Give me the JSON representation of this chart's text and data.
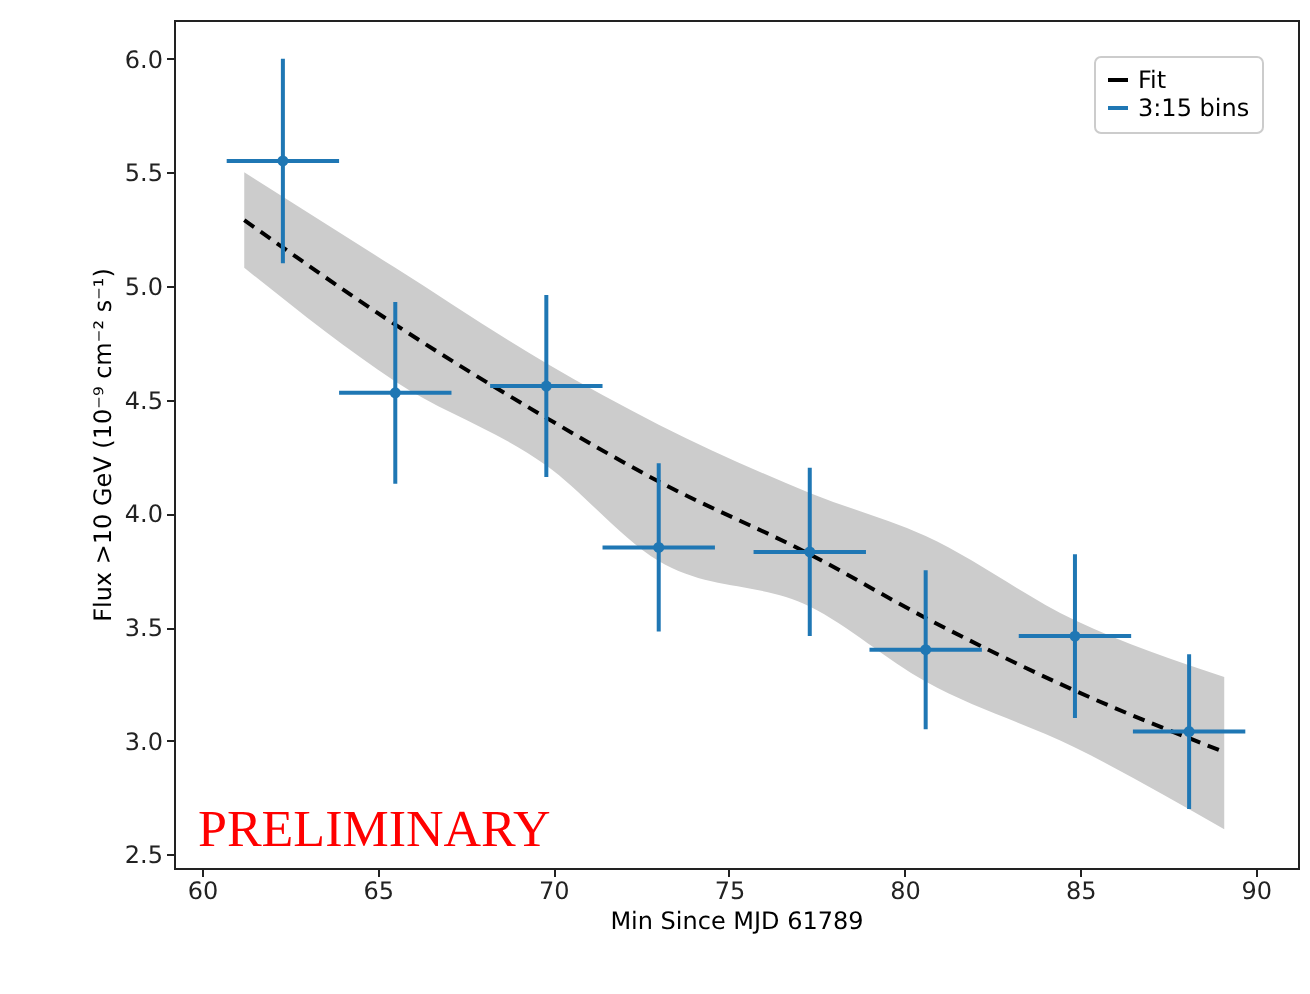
{
  "chart_data": {
    "type": "scatter",
    "xlabel": "Min Since MJD 61789",
    "ylabel": "Flux >10 GeV (10⁻⁹ cm⁻² s⁻¹)",
    "xlim": [
      59.2,
      91.2
    ],
    "ylim": [
      2.44,
      6.17
    ],
    "xticks": [
      60,
      65,
      70,
      75,
      80,
      85,
      90
    ],
    "yticks": [
      2.5,
      {
        "value": 3,
        "label": "3.0"
      },
      3.5,
      {
        "value": 4,
        "label": "4.0"
      },
      4.5,
      {
        "value": 5,
        "label": "5.0"
      },
      5.5,
      {
        "value": 6,
        "label": "6.0"
      }
    ],
    "legend": "top right",
    "grid": false,
    "annotations": [
      "PRELIMINARY"
    ],
    "series": [
      {
        "name": "Fit",
        "type": "line",
        "color": "#000000",
        "line_style": "dashed",
        "marker": "none",
        "x": [
          61.2,
          65.5,
          69.8,
          73.0,
          77.3,
          80.6,
          84.85,
          89.1
        ],
        "values": [
          5.29,
          4.83,
          4.42,
          4.14,
          3.82,
          3.54,
          3.22,
          2.95
        ],
        "lower": [
          5.08,
          4.58,
          4.21,
          3.79,
          3.59,
          3.26,
          2.97,
          2.61
        ],
        "upper": [
          5.5,
          5.08,
          4.66,
          4.39,
          4.09,
          3.9,
          3.53,
          3.28
        ]
      },
      {
        "name": "3:15 bins",
        "color": "#1f77b4",
        "marker": "circle",
        "x": [
          62.3,
          65.5,
          69.8,
          73.0,
          77.3,
          80.6,
          84.85,
          88.1
        ],
        "values": [
          5.55,
          4.53,
          4.56,
          3.85,
          3.83,
          3.4,
          3.46,
          3.04
        ],
        "errors": [
          0.45,
          0.4,
          0.4,
          0.37,
          0.37,
          0.35,
          0.36,
          0.34
        ],
        "xerrors": [
          1.6,
          1.6,
          1.6,
          1.6,
          1.6,
          1.6,
          1.6,
          1.6
        ]
      }
    ]
  }
}
